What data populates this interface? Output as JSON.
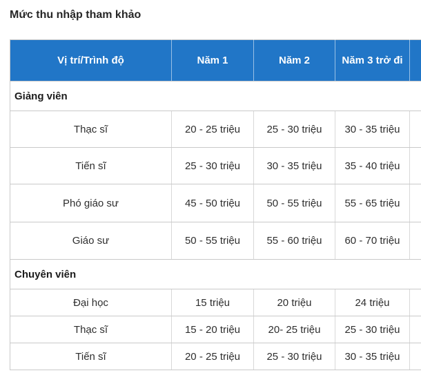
{
  "page": {
    "title": "Mức thu nhập tham khảo"
  },
  "colors": {
    "header_bg": "#2176c7",
    "header_text": "#ffffff",
    "grid_border": "#c9c9c9",
    "body_text": "#2e2e2e"
  },
  "table": {
    "columns": [
      "Vị trí/Trình độ",
      "Năm 1",
      "Năm 2",
      "Năm 3 trở đi",
      ""
    ],
    "sections": [
      {
        "header": "Giảng viên",
        "rows": [
          {
            "label": "Thạc sĩ",
            "values": [
              "20 - 25 triệu",
              "25 - 30 triệu",
              "30 - 35 triệu"
            ]
          },
          {
            "label": "Tiến sĩ",
            "values": [
              "25 - 30 triệu",
              "30 - 35 triệu",
              "35 - 40 triệu"
            ]
          },
          {
            "label": "Phó giáo sư",
            "values": [
              "45 - 50 triệu",
              "50 - 55 triệu",
              "55 - 65 triệu"
            ]
          },
          {
            "label": "Giáo sư",
            "values": [
              "50 - 55 triệu",
              "55 - 60 triệu",
              "60 - 70 triệu"
            ]
          }
        ]
      },
      {
        "header": "Chuyên viên",
        "rows": [
          {
            "label": "Đại học",
            "values": [
              "15 triệu",
              "20 triệu",
              "24 triệu"
            ]
          },
          {
            "label": "Thạc sĩ",
            "values": [
              "15 - 20 triệu",
              "20- 25 triệu",
              "25 - 30 triệu"
            ]
          },
          {
            "label": "Tiến sĩ",
            "values": [
              "20 - 25 triệu",
              "25 - 30 triệu",
              "30 - 35 triệu"
            ]
          }
        ]
      }
    ]
  }
}
